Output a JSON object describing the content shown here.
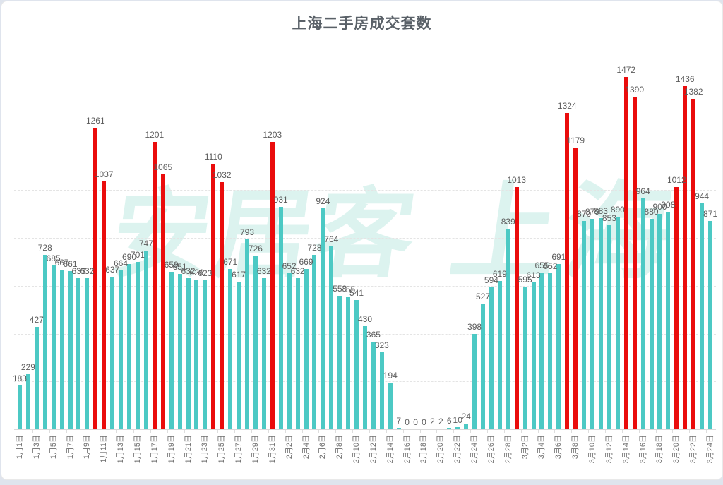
{
  "title": "上海二手房成交套数",
  "watermark": {
    "left": "安居客",
    "right": "上海"
  },
  "colors": {
    "teal": "#4cc9c4",
    "red": "#ea0c0c",
    "value_label": "#5c5c5c",
    "axis_label": "#6e6e6e",
    "grid": "#e4e4e4",
    "title": "#5a6168",
    "background": "#ffffff",
    "page_background": "#dfe4ed",
    "watermark": "#55c8b2"
  },
  "chart_data": {
    "type": "bar",
    "title": "上海二手房成交套数",
    "xlabel": "",
    "ylabel": "",
    "ylim": [
      0,
      1600
    ],
    "grid_step": 200,
    "grid_style": "dashed",
    "legend": "none",
    "x_tick_every": 2,
    "x": [
      "1月1日",
      "1月2日",
      "1月3日",
      "1月4日",
      "1月5日",
      "1月6日",
      "1月7日",
      "1月8日",
      "1月9日",
      "1月10日",
      "1月11日",
      "1月12日",
      "1月13日",
      "1月14日",
      "1月15日",
      "1月16日",
      "1月17日",
      "1月18日",
      "1月19日",
      "1月20日",
      "1月21日",
      "1月22日",
      "1月23日",
      "1月24日",
      "1月25日",
      "1月26日",
      "1月27日",
      "1月28日",
      "1月29日",
      "1月30日",
      "1月31日",
      "2月1日",
      "2月2日",
      "2月3日",
      "2月4日",
      "2月5日",
      "2月6日",
      "2月7日",
      "2月8日",
      "2月9日",
      "2月10日",
      "2月11日",
      "2月12日",
      "2月13日",
      "2月14日",
      "2月15日",
      "2月16日",
      "2月17日",
      "2月18日",
      "2月19日",
      "2月20日",
      "2月21日",
      "2月22日",
      "2月23日",
      "2月24日",
      "2月25日",
      "2月26日",
      "2月27日",
      "2月28日",
      "3月1日",
      "3月2日",
      "3月3日",
      "3月4日",
      "3月5日",
      "3月6日",
      "3月7日",
      "3月8日",
      "3月9日",
      "3月10日",
      "3月11日",
      "3月12日",
      "3月13日",
      "3月14日",
      "3月15日",
      "3月16日",
      "3月17日",
      "3月18日",
      "3月19日",
      "3月20日",
      "3月21日",
      "3月22日",
      "3月23日",
      "3月24日"
    ],
    "values": [
      183,
      229,
      427,
      728,
      685,
      667,
      661,
      633,
      632,
      1261,
      1037,
      637,
      664,
      690,
      701,
      747,
      1201,
      1065,
      659,
      651,
      632,
      626,
      623,
      1110,
      1032,
      671,
      617,
      793,
      726,
      632,
      1203,
      931,
      652,
      632,
      669,
      728,
      924,
      764,
      558,
      555,
      541,
      430,
      365,
      323,
      194,
      7,
      0,
      0,
      0,
      2,
      2,
      6,
      10,
      24,
      398,
      527,
      594,
      619,
      839,
      1013,
      595,
      613,
      655,
      652,
      691,
      1324,
      1179,
      870,
      879,
      883,
      853,
      890,
      1472,
      1390,
      964,
      880,
      900,
      908,
      1012,
      1436,
      1382,
      944,
      871
    ],
    "red_indices": [
      9,
      10,
      16,
      17,
      23,
      24,
      30,
      59,
      65,
      66,
      72,
      73,
      78,
      79,
      80
    ]
  }
}
